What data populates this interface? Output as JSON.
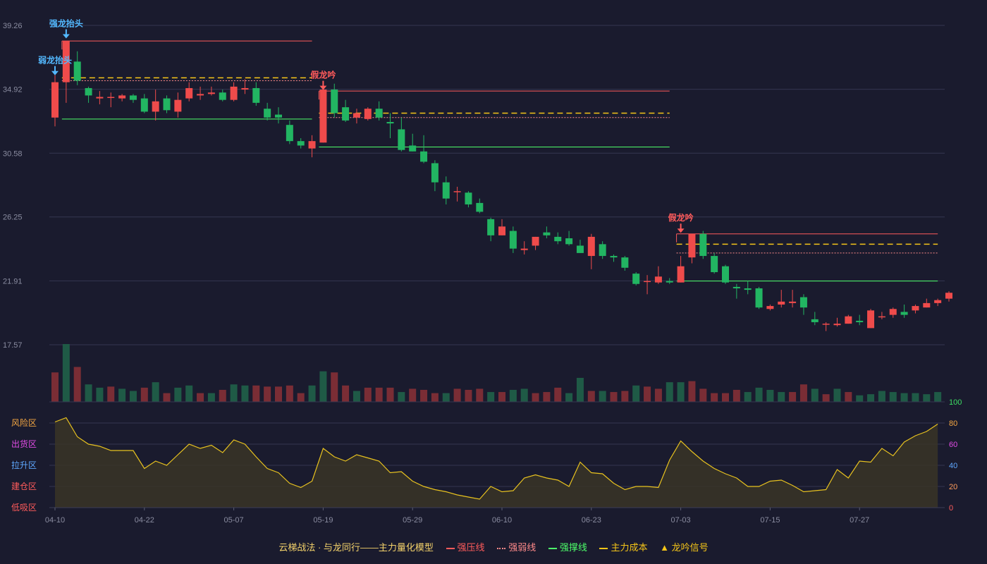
{
  "chart_data": {
    "type": "candlestick",
    "y_ticks": [
      "39.26",
      "34.92",
      "30.58",
      "26.25",
      "21.91",
      "17.57"
    ],
    "ylim": [
      17.57,
      39.26
    ],
    "x_ticks": [
      "04-10",
      "04-22",
      "05-07",
      "05-19",
      "05-29",
      "06-10",
      "06-23",
      "07-03",
      "07-15",
      "07-27"
    ],
    "x_tick_index": [
      0,
      8,
      16,
      24,
      32,
      40,
      48,
      56,
      64,
      72
    ],
    "candles": [
      [
        33.0,
        35.4,
        32.4,
        35.9
      ],
      [
        35.4,
        38.2,
        34.0,
        38.2
      ],
      [
        36.8,
        35.5,
        35.2,
        37.5
      ],
      [
        35.0,
        34.5,
        34.0,
        35.1
      ],
      [
        34.3,
        34.4,
        33.9,
        34.8
      ],
      [
        34.4,
        34.4,
        33.7,
        34.7
      ],
      [
        34.3,
        34.5,
        34.1,
        34.6
      ],
      [
        34.5,
        34.2,
        34.0,
        34.6
      ],
      [
        34.3,
        33.4,
        33.3,
        34.6
      ],
      [
        33.4,
        34.1,
        32.8,
        34.9
      ],
      [
        34.3,
        33.5,
        33.3,
        34.5
      ],
      [
        33.4,
        34.2,
        33.0,
        34.7
      ],
      [
        34.3,
        35.0,
        34.1,
        35.4
      ],
      [
        34.5,
        34.6,
        34.2,
        35.1
      ],
      [
        34.6,
        34.7,
        34.5,
        35.1
      ],
      [
        34.7,
        34.2,
        34.1,
        34.9
      ],
      [
        34.2,
        35.1,
        34.1,
        35.4
      ],
      [
        34.9,
        35.0,
        34.6,
        35.6
      ],
      [
        35.0,
        34.0,
        33.8,
        35.4
      ],
      [
        33.6,
        33.0,
        32.8,
        34.0
      ],
      [
        33.2,
        33.0,
        32.6,
        33.7
      ],
      [
        32.5,
        31.4,
        31.2,
        32.8
      ],
      [
        31.4,
        31.1,
        30.9,
        31.6
      ],
      [
        30.9,
        31.4,
        30.3,
        31.8
      ],
      [
        31.3,
        34.9,
        31.3,
        35.1
      ],
      [
        34.9,
        33.3,
        33.0,
        35.3
      ],
      [
        33.7,
        32.8,
        32.7,
        34.2
      ],
      [
        33.0,
        33.3,
        32.6,
        33.6
      ],
      [
        32.9,
        33.6,
        32.8,
        33.7
      ],
      [
        33.6,
        33.0,
        32.8,
        34.1
      ],
      [
        32.7,
        32.6,
        31.6,
        33.3
      ],
      [
        32.2,
        30.8,
        30.7,
        33.0
      ],
      [
        31.1,
        30.7,
        30.7,
        31.9
      ],
      [
        30.7,
        30.0,
        29.9,
        31.8
      ],
      [
        29.9,
        28.6,
        28.0,
        30.1
      ],
      [
        28.6,
        27.5,
        27.1,
        29.0
      ],
      [
        28.0,
        28.0,
        27.3,
        28.3
      ],
      [
        27.9,
        27.1,
        26.9,
        28.0
      ],
      [
        27.2,
        26.6,
        26.5,
        27.5
      ],
      [
        26.1,
        25.0,
        24.6,
        26.2
      ],
      [
        25.0,
        25.6,
        25.0,
        26.1
      ],
      [
        25.3,
        24.1,
        23.8,
        25.6
      ],
      [
        24.0,
        24.1,
        23.7,
        24.6
      ],
      [
        24.3,
        24.9,
        24.0,
        24.9
      ],
      [
        25.2,
        25.0,
        24.8,
        25.6
      ],
      [
        24.9,
        24.6,
        24.4,
        25.2
      ],
      [
        24.8,
        24.4,
        24.3,
        25.3
      ],
      [
        24.3,
        23.8,
        23.8,
        24.7
      ],
      [
        23.6,
        24.9,
        22.7,
        25.1
      ],
      [
        24.4,
        23.6,
        23.4,
        24.6
      ],
      [
        23.6,
        23.5,
        23.2,
        23.7
      ],
      [
        23.5,
        22.8,
        22.6,
        23.6
      ],
      [
        22.4,
        21.7,
        21.6,
        22.5
      ],
      [
        21.9,
        21.9,
        21.0,
        22.3
      ],
      [
        21.8,
        22.2,
        21.7,
        22.9
      ],
      [
        21.9,
        21.8,
        21.7,
        22.1
      ],
      [
        21.8,
        22.9,
        21.8,
        23.6
      ],
      [
        23.5,
        25.1,
        23.1,
        25.1
      ],
      [
        25.1,
        23.6,
        23.4,
        25.3
      ],
      [
        23.6,
        22.5,
        22.4,
        23.8
      ],
      [
        22.9,
        21.8,
        21.7,
        23.0
      ],
      [
        21.5,
        21.4,
        20.7,
        21.7
      ],
      [
        21.4,
        21.3,
        21.0,
        21.9
      ],
      [
        21.4,
        20.1,
        20.0,
        21.5
      ],
      [
        20.0,
        20.2,
        19.9,
        20.3
      ],
      [
        20.3,
        20.5,
        20.1,
        21.3
      ],
      [
        20.4,
        20.5,
        20.1,
        21.3
      ],
      [
        20.8,
        20.1,
        19.6,
        21.0
      ],
      [
        19.3,
        19.1,
        18.9,
        19.8
      ],
      [
        19.0,
        19.0,
        18.5,
        19.1
      ],
      [
        18.9,
        19.0,
        18.8,
        19.4
      ],
      [
        19.0,
        19.5,
        19.0,
        19.6
      ],
      [
        19.2,
        19.1,
        18.9,
        19.6
      ],
      [
        18.7,
        19.9,
        18.7,
        20.0
      ],
      [
        19.5,
        19.5,
        19.3,
        19.8
      ],
      [
        19.6,
        20.0,
        19.4,
        20.1
      ],
      [
        19.8,
        19.6,
        19.4,
        20.3
      ],
      [
        19.9,
        20.2,
        19.7,
        20.3
      ],
      [
        20.1,
        20.4,
        20.1,
        20.7
      ],
      [
        20.4,
        20.6,
        20.2,
        20.7
      ],
      [
        20.7,
        21.1,
        20.5,
        21.2
      ]
    ],
    "volume": [
      [
        27,
        1
      ],
      [
        53,
        0
      ],
      [
        32,
        1
      ],
      [
        16,
        0
      ],
      [
        13,
        0
      ],
      [
        14,
        1
      ],
      [
        12,
        0
      ],
      [
        10,
        0
      ],
      [
        13,
        1
      ],
      [
        18,
        0
      ],
      [
        8,
        1
      ],
      [
        13,
        0
      ],
      [
        15,
        0
      ],
      [
        8,
        1
      ],
      [
        8,
        0
      ],
      [
        11,
        1
      ],
      [
        16,
        0
      ],
      [
        15,
        0
      ],
      [
        15,
        1
      ],
      [
        14,
        1
      ],
      [
        14,
        1
      ],
      [
        15,
        1
      ],
      [
        8,
        1
      ],
      [
        15,
        0
      ],
      [
        28,
        0
      ],
      [
        27,
        1
      ],
      [
        15,
        1
      ],
      [
        10,
        0
      ],
      [
        13,
        1
      ],
      [
        13,
        1
      ],
      [
        13,
        1
      ],
      [
        9,
        0
      ],
      [
        12,
        1
      ],
      [
        11,
        1
      ],
      [
        8,
        1
      ],
      [
        8,
        0
      ],
      [
        12,
        1
      ],
      [
        11,
        1
      ],
      [
        12,
        1
      ],
      [
        9,
        0
      ],
      [
        9,
        1
      ],
      [
        11,
        0
      ],
      [
        12,
        0
      ],
      [
        8,
        1
      ],
      [
        9,
        1
      ],
      [
        13,
        1
      ],
      [
        8,
        0
      ],
      [
        22,
        0
      ],
      [
        10,
        1
      ],
      [
        10,
        0
      ],
      [
        9,
        1
      ],
      [
        10,
        1
      ],
      [
        15,
        0
      ],
      [
        14,
        1
      ],
      [
        12,
        1
      ],
      [
        18,
        0
      ],
      [
        18,
        0
      ],
      [
        19,
        1
      ],
      [
        12,
        1
      ],
      [
        8,
        1
      ],
      [
        8,
        1
      ],
      [
        11,
        1
      ],
      [
        9,
        0
      ],
      [
        13,
        0
      ],
      [
        11,
        0
      ],
      [
        9,
        0
      ],
      [
        9,
        1
      ],
      [
        16,
        1
      ],
      [
        12,
        0
      ],
      [
        7,
        1
      ],
      [
        12,
        0
      ],
      [
        9,
        1
      ],
      [
        6,
        0
      ],
      [
        7,
        0
      ],
      [
        10,
        0
      ],
      [
        9,
        0
      ],
      [
        8,
        0
      ],
      [
        8,
        0
      ],
      [
        7,
        0
      ],
      [
        9,
        0
      ]
    ],
    "lines": {
      "strong_pressure": [
        {
          "from": 1,
          "to": 23,
          "y": 38.2
        },
        {
          "from": 24,
          "to": 55,
          "y": 34.8
        },
        {
          "from": 56,
          "to": 79,
          "y": 25.1
        }
      ],
      "strong_weak": [
        {
          "from": 1,
          "to": 23,
          "y": 35.5
        },
        {
          "from": 24,
          "to": 55,
          "y": 33.0
        },
        {
          "from": 56,
          "to": 79,
          "y": 23.8
        }
      ],
      "strong_support": [
        {
          "from": 1,
          "to": 23,
          "y": 32.9
        },
        {
          "from": 24,
          "to": 55,
          "y": 31.0
        },
        {
          "from": 56,
          "to": 79,
          "y": 21.9
        }
      ],
      "main_cost": [
        {
          "from": 1,
          "to": 23,
          "y": 35.7
        },
        {
          "from": 24,
          "to": 55,
          "y": 33.3
        },
        {
          "from": 56,
          "to": 79,
          "y": 24.4
        }
      ]
    },
    "signals": [
      {
        "index": 1,
        "label": "强龙抬头",
        "color": "#53b9ff",
        "y": 38.9
      },
      {
        "index": 0,
        "label": "弱龙抬头",
        "color": "#53b9ff",
        "y": 36.4
      },
      {
        "index": 24,
        "label": "假龙吟",
        "color": "#ff5b5b",
        "y": 35.4
      },
      {
        "index": 56,
        "label": "假龙吟",
        "color": "#ff5b5b",
        "y": 25.7
      }
    ],
    "oscillator": {
      "values": [
        81,
        85,
        67,
        60,
        58,
        54,
        54,
        54,
        37,
        44,
        40,
        50,
        60,
        56,
        59,
        52,
        64,
        60,
        48,
        37,
        33,
        23,
        19,
        25,
        56,
        48,
        44,
        50,
        47,
        44,
        33,
        34,
        25,
        20,
        17,
        15,
        12,
        10,
        8,
        20,
        15,
        16,
        28,
        31,
        28,
        26,
        20,
        43,
        33,
        32,
        23,
        17,
        20,
        20,
        19,
        45,
        63,
        53,
        44,
        37,
        32,
        28,
        20,
        20,
        25,
        26,
        21,
        15,
        16,
        17,
        36,
        28,
        44,
        43,
        56,
        49,
        62,
        68,
        72,
        79
      ],
      "ylim": [
        0,
        100
      ],
      "y_ticks": [
        "0",
        "20",
        "40",
        "60",
        "80",
        "100"
      ],
      "y_tick_colors": [
        "#ff5b5b",
        "#ff9d5c",
        "#5fa8ff",
        "#e24ce6",
        "#f5a742",
        "#3dde63"
      ],
      "zones": [
        {
          "label": "低吸区",
          "color": "#ff5b5b"
        },
        {
          "label": "建仓区",
          "color": "#ff5b5b"
        },
        {
          "label": "拉升区",
          "color": "#5fa8ff"
        },
        {
          "label": "出货区",
          "color": "#e24ce6"
        },
        {
          "label": "风险区",
          "color": "#f5a742"
        }
      ]
    }
  },
  "legend": {
    "title": "云梯战法 · 与龙同行——主力量化模型",
    "items": [
      {
        "label": "强压线",
        "color": "#ff5b5b",
        "style": "solid"
      },
      {
        "label": "强弱线",
        "color": "#ff8a8a",
        "style": "dotted"
      },
      {
        "label": "强撑线",
        "color": "#4dff6a",
        "style": "solid"
      },
      {
        "label": "主力成本",
        "color": "#f5c518",
        "style": "dashed"
      }
    ],
    "signal_label": "龙吟信号",
    "signal_color": "#f5c518"
  },
  "colors": {
    "up": "#ef4b4b",
    "down": "#22b562",
    "grid": "#343650",
    "axis_text": "#8a8ca0",
    "osc_line": "#e8c21f",
    "osc_fill": "#3a3426"
  }
}
